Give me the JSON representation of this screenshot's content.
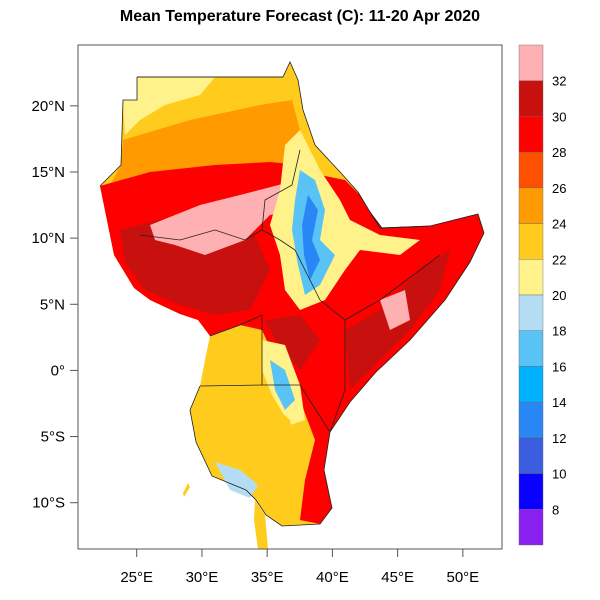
{
  "title": "Mean Temperature Forecast (C):  11-20 Apr 2020",
  "map": {
    "lon_range": [
      20.5,
      53.0
    ],
    "lat_range": [
      -13.5,
      24.6
    ],
    "lon_ticks": [
      {
        "value": 25,
        "label": "25°E"
      },
      {
        "value": 30,
        "label": "30°E"
      },
      {
        "value": 35,
        "label": "35°E"
      },
      {
        "value": 40,
        "label": "40°E"
      },
      {
        "value": 45,
        "label": "45°E"
      },
      {
        "value": 50,
        "label": "50°E"
      }
    ],
    "lat_ticks": [
      {
        "value": 20,
        "label": "20°N"
      },
      {
        "value": 15,
        "label": "15°N"
      },
      {
        "value": 10,
        "label": "10°N"
      },
      {
        "value": 5,
        "label": "5°N"
      },
      {
        "value": 0,
        "label": "0°"
      },
      {
        "value": -5,
        "label": "5°S"
      },
      {
        "value": -10,
        "label": "10°S"
      }
    ],
    "variable": "mean temperature",
    "units": "C"
  },
  "colorbar": {
    "labels": [
      "32",
      "30",
      "28",
      "26",
      "24",
      "22",
      "20",
      "18",
      "16",
      "14",
      "12",
      "10",
      "8"
    ],
    "colors": [
      "#ffb0b3",
      "#c8100e",
      "#ff0000",
      "#ff5000",
      "#ff9a00",
      "#ffcc1e",
      "#fff28a",
      "#b4ddf4",
      "#5ac3f5",
      "#00b1ff",
      "#2887f5",
      "#3b5ee0",
      "#0a00ff",
      "#8a20f0"
    ]
  }
}
